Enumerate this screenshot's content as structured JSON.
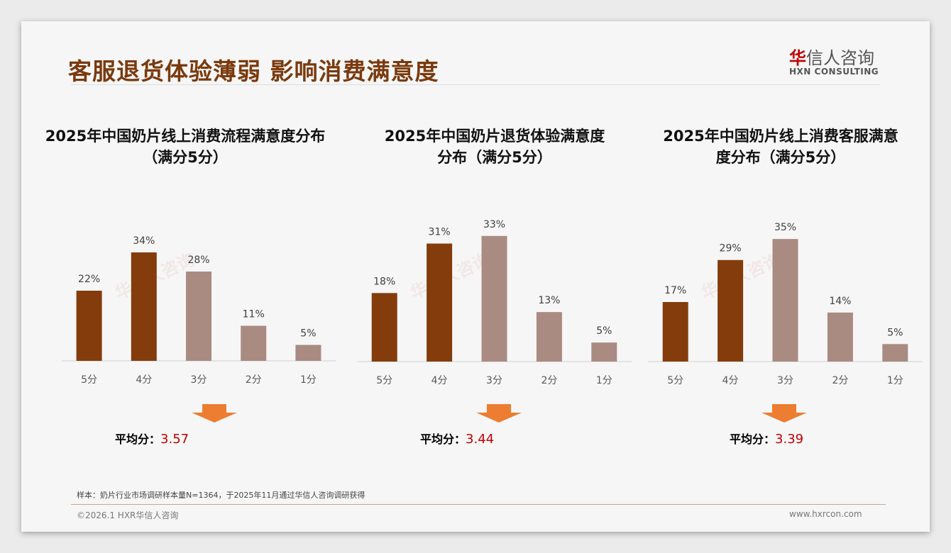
{
  "title": "客服退货体验薄弱 影响消费满意度",
  "logo": {
    "cn_accent": "华",
    "cn_rest": "信人咨询",
    "en": "HXN CONSULTING"
  },
  "watermark": "华信人咨询",
  "colors": {
    "dark": "#843c0c",
    "light": "#a98b82",
    "arrow": "#ed7d31",
    "avg": "#c00000"
  },
  "chart_data": [
    {
      "type": "bar",
      "title_lines": [
        "2025年中国奶片线上消费流程满意度分布",
        "（满分5分）"
      ],
      "categories": [
        "5分",
        "4分",
        "3分",
        "2分",
        "1分"
      ],
      "values": [
        22,
        34,
        28,
        11,
        5
      ],
      "labels": [
        "22%",
        "34%",
        "28%",
        "11%",
        "5%"
      ],
      "highlight": [
        true,
        true,
        false,
        false,
        false
      ],
      "avg_label": "平均分：",
      "avg_value": "3.57"
    },
    {
      "type": "bar",
      "title_lines": [
        "2025年中国奶片退货体验满意度",
        "分布（满分5分）"
      ],
      "categories": [
        "5分",
        "4分",
        "3分",
        "2分",
        "1分"
      ],
      "values": [
        18,
        31,
        33,
        13,
        5
      ],
      "labels": [
        "18%",
        "31%",
        "33%",
        "13%",
        "5%"
      ],
      "highlight": [
        true,
        true,
        false,
        false,
        false
      ],
      "avg_label": "平均分：",
      "avg_value": "3.44"
    },
    {
      "type": "bar",
      "title_lines": [
        "2025年中国奶片线上消费客服满意",
        "度分布（满分5分）"
      ],
      "categories": [
        "5分",
        "4分",
        "3分",
        "2分",
        "1分"
      ],
      "values": [
        17,
        29,
        35,
        14,
        5
      ],
      "labels": [
        "17%",
        "29%",
        "35%",
        "14%",
        "5%"
      ],
      "highlight": [
        true,
        true,
        false,
        false,
        false
      ],
      "avg_label": "平均分：",
      "avg_value": "3.39"
    }
  ],
  "footer": {
    "note": "样本：奶片行业市场调研样本量N=1364，于2025年11月通过华信人咨询调研获得",
    "copyright": "©2026.1 HXR华信人咨询",
    "website": "www.hxrcon.com"
  }
}
